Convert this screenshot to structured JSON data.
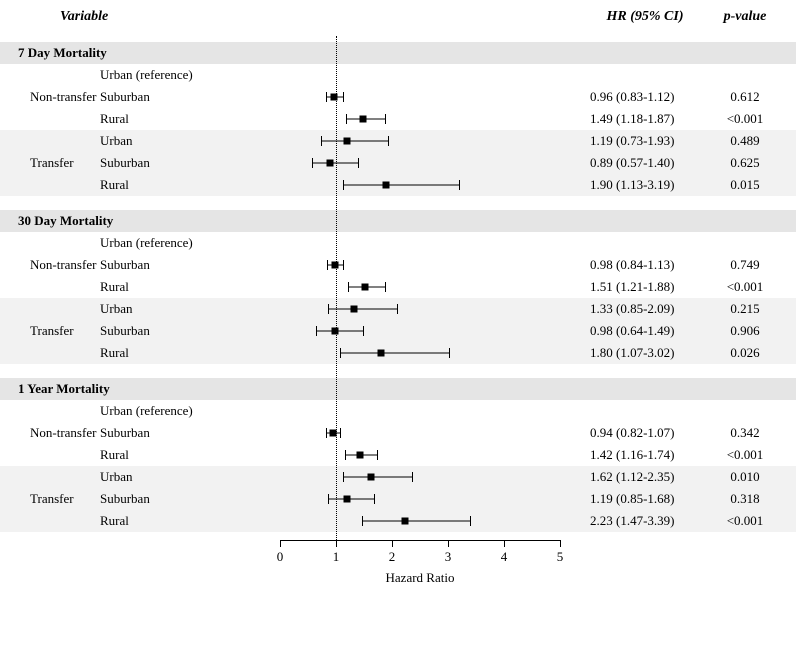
{
  "headers": {
    "variable": "Variable",
    "hr": "HR (95% CI)",
    "p": "p-value"
  },
  "axis": {
    "min": 0,
    "max": 5,
    "ticks": [
      0,
      1,
      2,
      3,
      4,
      5
    ],
    "title": "Hazard Ratio",
    "refline_value": 1
  },
  "colors": {
    "background": "#ffffff",
    "text": "#000000",
    "shade1": "#e5e5e5",
    "shade2": "#f2f2f2",
    "line": "#000000"
  },
  "font": {
    "family": "Times New Roman",
    "size_body": 13,
    "size_header": 14
  },
  "sections": [
    {
      "title": "7 Day Mortality",
      "groups": [
        {
          "label": "Non-transfer",
          "rows": [
            {
              "sub": "Urban (reference)",
              "shaded": false,
              "hr": null,
              "lo": null,
              "hi": null,
              "hr_text": "",
              "p": ""
            },
            {
              "sub": "Suburban",
              "shaded": false,
              "hr": 0.96,
              "lo": 0.83,
              "hi": 1.12,
              "hr_text": "0.96 (0.83-1.12)",
              "p": "0.612"
            },
            {
              "sub": "Rural",
              "shaded": false,
              "hr": 1.49,
              "lo": 1.18,
              "hi": 1.87,
              "hr_text": "1.49 (1.18-1.87)",
              "p": "<0.001"
            }
          ]
        },
        {
          "label": "Transfer",
          "rows": [
            {
              "sub": "Urban",
              "shaded": true,
              "hr": 1.19,
              "lo": 0.73,
              "hi": 1.93,
              "hr_text": "1.19 (0.73-1.93)",
              "p": "0.489"
            },
            {
              "sub": "Suburban",
              "shaded": true,
              "hr": 0.89,
              "lo": 0.57,
              "hi": 1.4,
              "hr_text": "0.89 (0.57-1.40)",
              "p": "0.625"
            },
            {
              "sub": "Rural",
              "shaded": true,
              "hr": 1.9,
              "lo": 1.13,
              "hi": 3.19,
              "hr_text": "1.90 (1.13-3.19)",
              "p": "0.015"
            }
          ]
        }
      ]
    },
    {
      "title": "30 Day Mortality",
      "groups": [
        {
          "label": "Non-transfer",
          "rows": [
            {
              "sub": "Urban (reference)",
              "shaded": false,
              "hr": null,
              "lo": null,
              "hi": null,
              "hr_text": "",
              "p": ""
            },
            {
              "sub": "Suburban",
              "shaded": false,
              "hr": 0.98,
              "lo": 0.84,
              "hi": 1.13,
              "hr_text": "0.98 (0.84-1.13)",
              "p": "0.749"
            },
            {
              "sub": "Rural",
              "shaded": false,
              "hr": 1.51,
              "lo": 1.21,
              "hi": 1.88,
              "hr_text": "1.51 (1.21-1.88)",
              "p": "<0.001"
            }
          ]
        },
        {
          "label": "Transfer",
          "rows": [
            {
              "sub": "Urban",
              "shaded": true,
              "hr": 1.33,
              "lo": 0.85,
              "hi": 2.09,
              "hr_text": "1.33 (0.85-2.09)",
              "p": "0.215"
            },
            {
              "sub": "Suburban",
              "shaded": true,
              "hr": 0.98,
              "lo": 0.64,
              "hi": 1.49,
              "hr_text": "0.98 (0.64-1.49)",
              "p": "0.906"
            },
            {
              "sub": "Rural",
              "shaded": true,
              "hr": 1.8,
              "lo": 1.07,
              "hi": 3.02,
              "hr_text": "1.80 (1.07-3.02)",
              "p": "0.026"
            }
          ]
        }
      ]
    },
    {
      "title": "1 Year Mortality",
      "groups": [
        {
          "label": "Non-transfer",
          "rows": [
            {
              "sub": "Urban (reference)",
              "shaded": false,
              "hr": null,
              "lo": null,
              "hi": null,
              "hr_text": "",
              "p": ""
            },
            {
              "sub": "Suburban",
              "shaded": false,
              "hr": 0.94,
              "lo": 0.82,
              "hi": 1.07,
              "hr_text": "0.94 (0.82-1.07)",
              "p": "0.342"
            },
            {
              "sub": "Rural",
              "shaded": false,
              "hr": 1.42,
              "lo": 1.16,
              "hi": 1.74,
              "hr_text": "1.42 (1.16-1.74)",
              "p": "<0.001"
            }
          ]
        },
        {
          "label": "Transfer",
          "rows": [
            {
              "sub": "Urban",
              "shaded": true,
              "hr": 1.62,
              "lo": 1.12,
              "hi": 2.35,
              "hr_text": "1.62 (1.12-2.35)",
              "p": "0.010"
            },
            {
              "sub": "Suburban",
              "shaded": true,
              "hr": 1.19,
              "lo": 0.85,
              "hi": 1.68,
              "hr_text": "1.19 (0.85-1.68)",
              "p": "0.318"
            },
            {
              "sub": "Rural",
              "shaded": true,
              "hr": 2.23,
              "lo": 1.47,
              "hi": 3.39,
              "hr_text": "2.23 (1.47-3.39)",
              "p": "<0.001"
            }
          ]
        }
      ]
    }
  ]
}
